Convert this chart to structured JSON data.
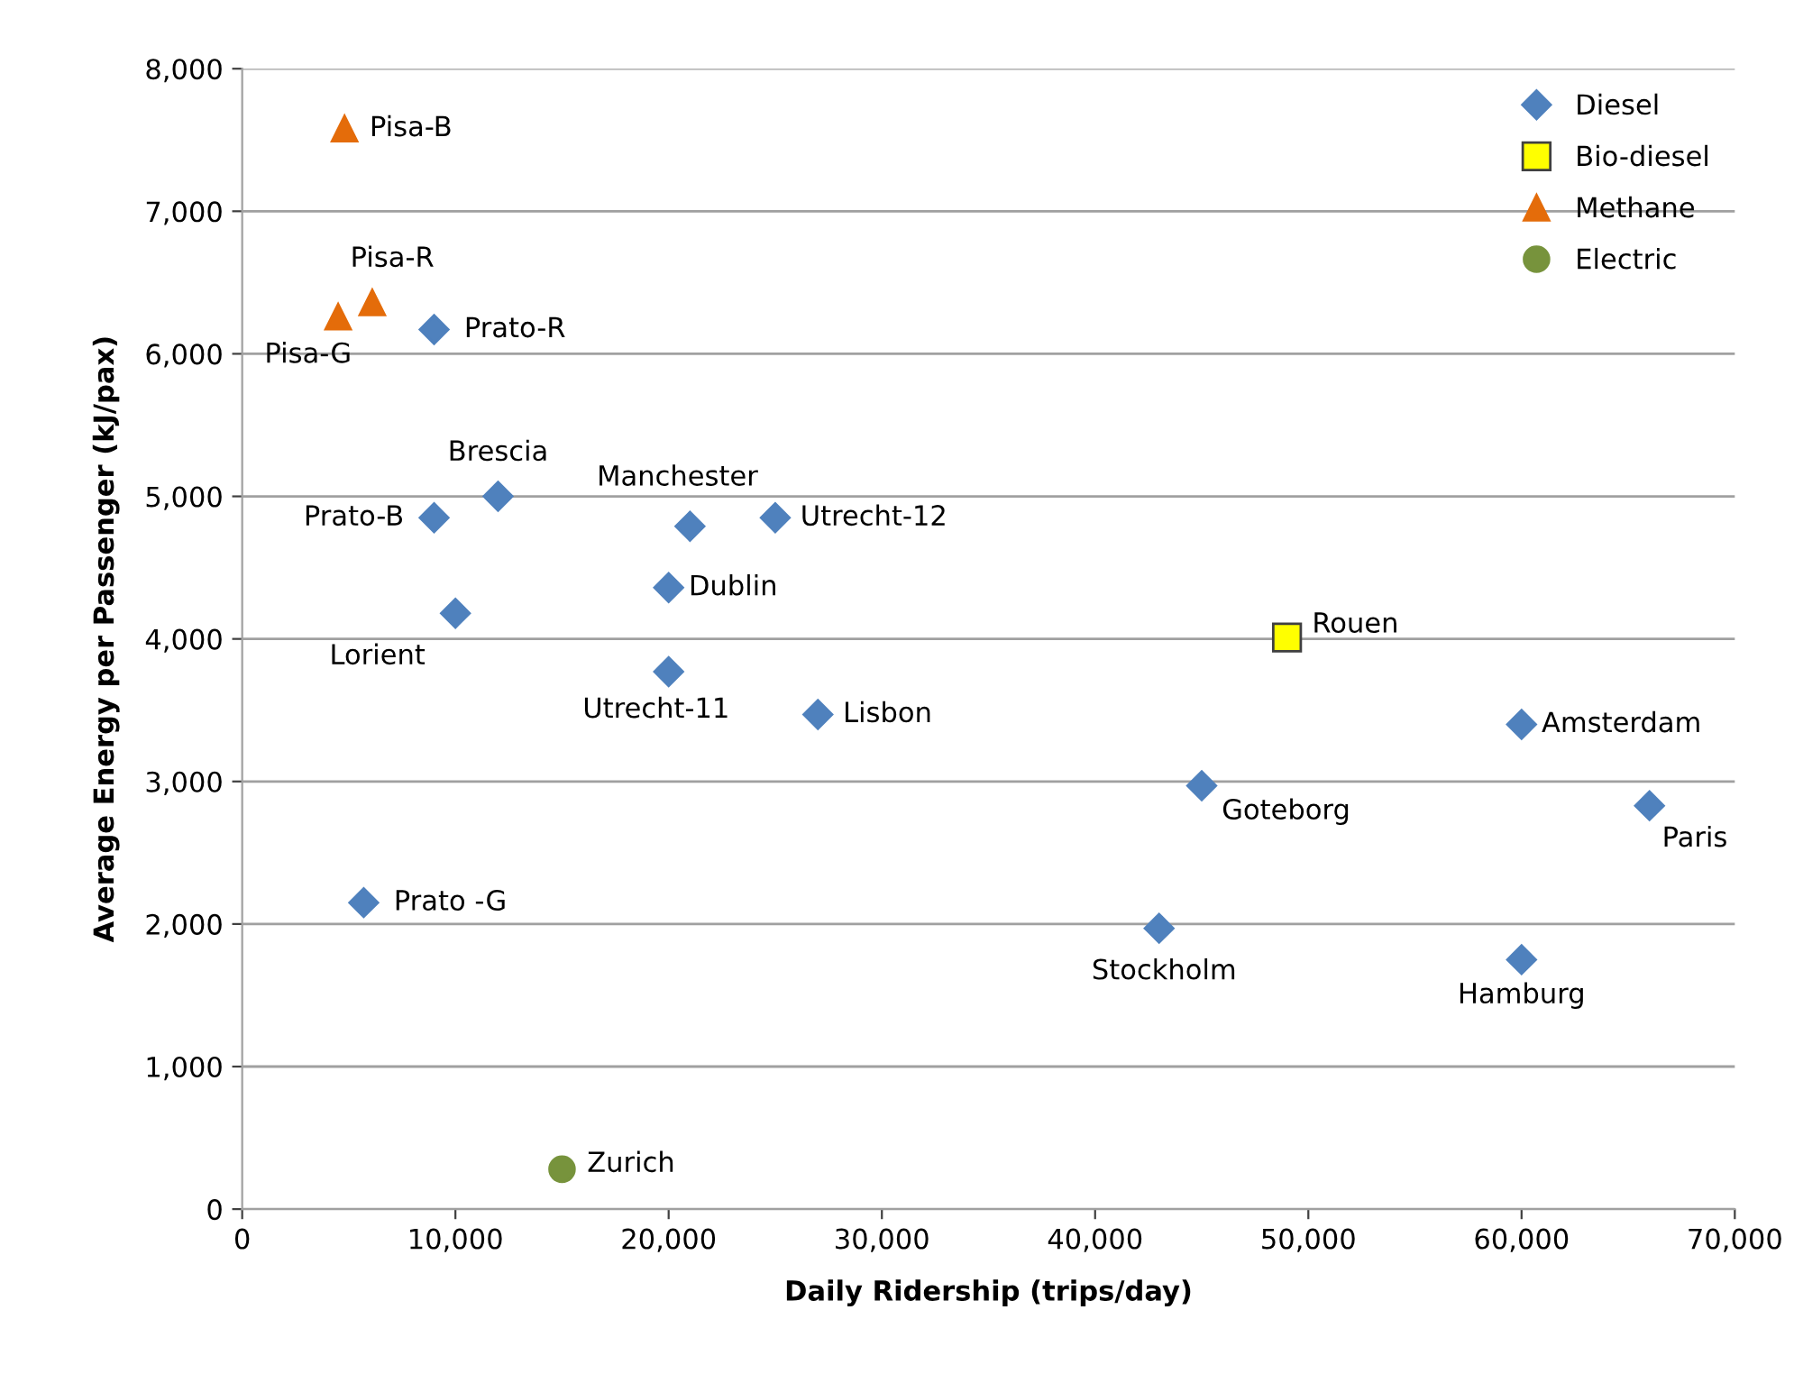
{
  "chart_data": {
    "type": "scatter",
    "xlabel": "Daily Ridership (trips/day)",
    "ylabel": "Average Energy per Passenger (kJ/pax)",
    "xlim": [
      0,
      70000
    ],
    "xticks": [
      {
        "value": 0,
        "label": "0"
      },
      {
        "value": 10000,
        "label": "10,000"
      },
      {
        "value": 20000,
        "label": "20,000"
      },
      {
        "value": 30000,
        "label": "30,000"
      },
      {
        "value": 40000,
        "label": "40,000"
      },
      {
        "value": 50000,
        "label": "50,000"
      },
      {
        "value": 60000,
        "label": "60,000"
      },
      {
        "value": 70000,
        "label": "70,000"
      }
    ],
    "ylim": [
      0,
      8000
    ],
    "yticks": [
      {
        "value": 0,
        "label": "0"
      },
      {
        "value": 1000,
        "label": "1,000"
      },
      {
        "value": 2000,
        "label": "2,000"
      },
      {
        "value": 3000,
        "label": "3,000"
      },
      {
        "value": 4000,
        "label": "4,000"
      },
      {
        "value": 5000,
        "label": "5,000"
      },
      {
        "value": 6000,
        "label": "6,000"
      },
      {
        "value": 7000,
        "label": "7,000"
      },
      {
        "value": 8000,
        "label": "8,000"
      }
    ],
    "grid": "y",
    "legend": "top right",
    "series": [
      {
        "name": "Diesel",
        "color": "#4f81bd",
        "marker": "diamond",
        "x": [
          9000,
          12000,
          9000,
          21000,
          25000,
          20000,
          10000,
          20000,
          27000,
          45000,
          60000,
          66000,
          43000,
          60000,
          5700
        ],
        "values": [
          6170,
          5000,
          4850,
          4790,
          4850,
          4360,
          4180,
          3770,
          3470,
          2970,
          3400,
          2830,
          1970,
          1750,
          2150
        ]
      },
      {
        "name": "Bio-diesel",
        "color": "#ffff00",
        "marker": "square",
        "x": [
          49000
        ],
        "values": [
          4010
        ]
      },
      {
        "name": "Methane",
        "color": "#e46c0a",
        "marker": "triangle",
        "x": [
          4800,
          6100,
          4500
        ],
        "values": [
          7580,
          6360,
          6260
        ]
      },
      {
        "name": "Electric",
        "color": "#77933c",
        "marker": "circle",
        "x": [
          15000
        ],
        "values": [
          280
        ]
      }
    ],
    "annotations": [
      {
        "text": "Prato-R",
        "x": 9000,
        "y": 6170
      },
      {
        "text": "Brescia",
        "x": 12000,
        "y": 5000
      },
      {
        "text": "Prato-B",
        "x": 9000,
        "y": 4850
      },
      {
        "text": "Manchester",
        "x": 21000,
        "y": 4790
      },
      {
        "text": "Utrecht-12",
        "x": 25000,
        "y": 4850
      },
      {
        "text": "Dublin",
        "x": 20000,
        "y": 4360
      },
      {
        "text": "Lorient",
        "x": 10000,
        "y": 4180
      },
      {
        "text": "Utrecht-11",
        "x": 20000,
        "y": 3770
      },
      {
        "text": "Lisbon",
        "x": 27000,
        "y": 3470
      },
      {
        "text": "Goteborg",
        "x": 45000,
        "y": 2970
      },
      {
        "text": "Amsterdam",
        "x": 60000,
        "y": 3400
      },
      {
        "text": "Paris",
        "x": 66000,
        "y": 2830
      },
      {
        "text": "Stockholm",
        "x": 43000,
        "y": 1970
      },
      {
        "text": "Hamburg",
        "x": 60000,
        "y": 1750
      },
      {
        "text": "Prato -G",
        "x": 5700,
        "y": 2150
      },
      {
        "text": "Rouen",
        "x": 49000,
        "y": 4010
      },
      {
        "text": "Pisa-B",
        "x": 4800,
        "y": 7580
      },
      {
        "text": "Pisa-R",
        "x": 6100,
        "y": 6360
      },
      {
        "text": "Pisa-G",
        "x": 4500,
        "y": 6260
      },
      {
        "text": "Zurich",
        "x": 15000,
        "y": 280
      }
    ]
  }
}
